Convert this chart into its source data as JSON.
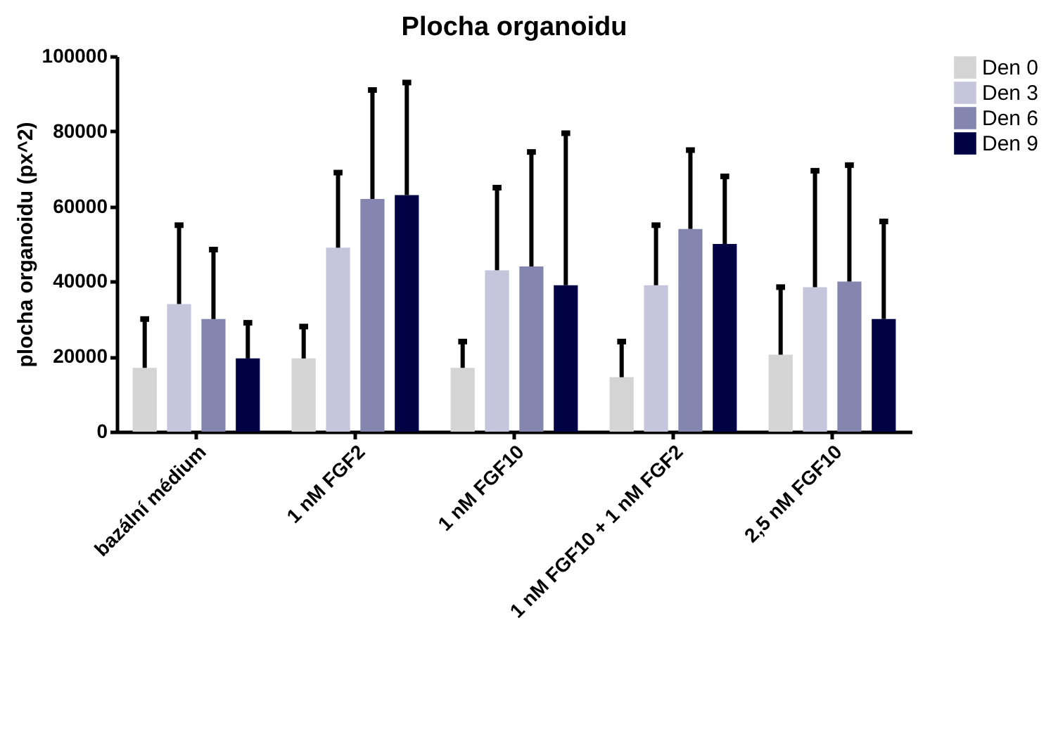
{
  "chart_data": {
    "type": "bar",
    "title": "Plocha organoidu",
    "ylabel": "plocha organoidu (px^2)",
    "categories": [
      "bazální médium",
      "1 nM FGF2",
      "1 nM FGF10",
      "1 nM FGF10 + 1 nM FGF2",
      "2,5 nM FGF10"
    ],
    "series": [
      {
        "name": "Den 0",
        "color": "#d4d4d4",
        "values": [
          17000,
          19500,
          17000,
          14500,
          20500
        ],
        "errors": [
          [
            17000,
            30000
          ],
          [
            19500,
            28000
          ],
          [
            17000,
            24000
          ],
          [
            14500,
            24000
          ],
          [
            20500,
            38500
          ]
        ]
      },
      {
        "name": "Den 3",
        "color": "#c5c6dc",
        "values": [
          34000,
          49000,
          43000,
          39000,
          38500
        ],
        "errors": [
          [
            34000,
            55000
          ],
          [
            49000,
            69000
          ],
          [
            43000,
            65000
          ],
          [
            39000,
            55000
          ],
          [
            38500,
            69500
          ]
        ]
      },
      {
        "name": "Den 6",
        "color": "#8486b0",
        "values": [
          30000,
          62000,
          44000,
          54000,
          40000
        ],
        "errors": [
          [
            30000,
            48500
          ],
          [
            62000,
            91000
          ],
          [
            44000,
            74500
          ],
          [
            54000,
            75000
          ],
          [
            40000,
            71000
          ]
        ]
      },
      {
        "name": "Den 9",
        "color": "#020344",
        "values": [
          19500,
          63000,
          39000,
          50000,
          30000
        ],
        "errors": [
          [
            19500,
            29000
          ],
          [
            63000,
            93000
          ],
          [
            39000,
            79500
          ],
          [
            50000,
            68000
          ],
          [
            30000,
            56000
          ]
        ]
      }
    ],
    "ylim": [
      0,
      100000
    ],
    "yticks": [
      0,
      20000,
      40000,
      60000,
      80000,
      100000
    ],
    "grid": false,
    "legend": "top right"
  }
}
